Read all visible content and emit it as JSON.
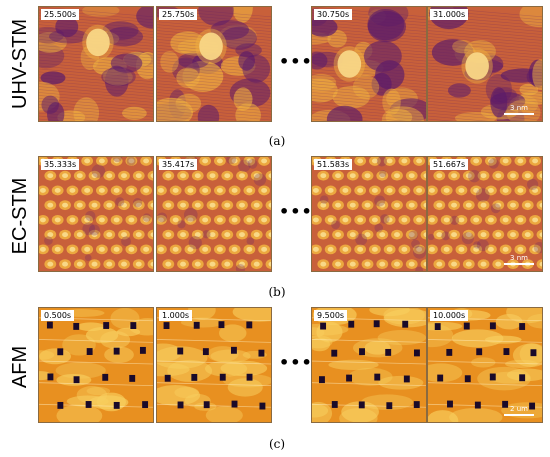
{
  "rows": [
    {
      "label": "UHV-STM",
      "caption": "(a)",
      "frames": [
        "25.500s",
        "25.750s",
        "30.750s",
        "31.000s"
      ],
      "scalebar": "3 nm",
      "texture": "stm-uhv"
    },
    {
      "label": "EC-STM",
      "caption": "(b)",
      "frames": [
        "35.333s",
        "35.417s",
        "51.583s",
        "51.667s"
      ],
      "scalebar": "3 nm",
      "texture": "stm-ec"
    },
    {
      "label": "AFM",
      "caption": "(c)",
      "frames": [
        "0.500s",
        "1.000s",
        "9.500s",
        "10.000s"
      ],
      "scalebar": "2 um",
      "texture": "afm"
    }
  ],
  "ellipsis": "•••",
  "colors": {
    "stm_dark": "#5a1a6a",
    "stm_mid": "#c8603a",
    "stm_light": "#f0b040",
    "afm_base": "#e89020",
    "afm_light": "#f8d060",
    "afm_pit": "#1a0a2a"
  }
}
